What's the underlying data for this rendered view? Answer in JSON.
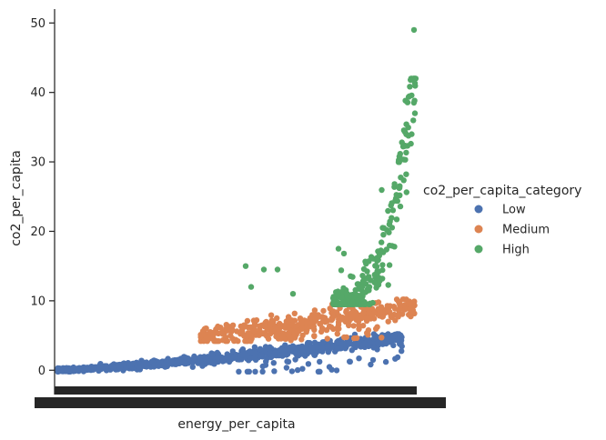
{
  "chart_data": {
    "type": "scatter",
    "title": "",
    "xlabel": "energy_per_capita",
    "ylabel": "co2_per_capita",
    "ylim": [
      -3.5,
      52
    ],
    "yticks": [
      0,
      10,
      20,
      30,
      40,
      50
    ],
    "x_axis": "categorical (hundreds of overlapping tick labels)",
    "grid": false,
    "legend": {
      "title": "co2_per_capita_category",
      "placement": "right"
    },
    "series": [
      {
        "name": "Low",
        "color": "#4c72b0",
        "description": "rises from ~0 at low energy to ~4-5 at high energy",
        "y_start": 0.0,
        "y_end": 4.5
      },
      {
        "name": "Medium",
        "color": "#dd8452",
        "description": "appears mid-range at ~4-5, rising to ~8-10",
        "y_start": 4.5,
        "y_end": 9.5
      },
      {
        "name": "High",
        "color": "#55a868",
        "description": "appears at highest energy, ~9 rising steeply to ~49",
        "y_start": 9.5,
        "y_end": 49.0
      }
    ]
  }
}
